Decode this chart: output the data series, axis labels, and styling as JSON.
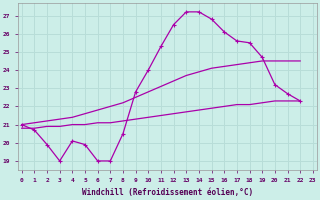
{
  "xlabel": "Windchill (Refroidissement éolien,°C)",
  "bg_color": "#cceee8",
  "grid_color": "#b8ddd8",
  "line_color": "#aa00aa",
  "x_ticks": [
    0,
    1,
    2,
    3,
    4,
    5,
    6,
    7,
    8,
    9,
    10,
    11,
    12,
    13,
    14,
    15,
    16,
    17,
    18,
    19,
    20,
    21,
    22,
    23
  ],
  "y_ticks": [
    19,
    20,
    21,
    22,
    23,
    24,
    25,
    26,
    27
  ],
  "ylim": [
    18.5,
    27.7
  ],
  "xlim": [
    -0.3,
    23.3
  ],
  "line1_x": [
    0,
    1,
    2,
    3,
    4,
    5,
    6,
    7,
    8,
    9,
    10,
    11,
    12,
    13,
    14,
    15,
    16,
    17,
    18,
    19,
    20,
    21,
    22
  ],
  "line1_y": [
    21.0,
    20.7,
    19.9,
    19.0,
    20.1,
    19.9,
    19.0,
    19.0,
    20.5,
    22.8,
    24.0,
    25.3,
    26.5,
    27.2,
    27.2,
    26.8,
    26.1,
    25.6,
    25.5,
    24.7,
    23.2,
    22.7,
    22.3
  ],
  "line2_x": [
    0,
    1,
    2,
    3,
    4,
    5,
    6,
    7,
    8,
    9,
    10,
    11,
    12,
    13,
    14,
    15,
    16,
    17,
    18,
    19,
    20,
    21,
    22
  ],
  "line2_y": [
    20.8,
    20.8,
    20.9,
    20.9,
    21.0,
    21.0,
    21.1,
    21.1,
    21.2,
    21.3,
    21.4,
    21.5,
    21.6,
    21.7,
    21.8,
    21.9,
    22.0,
    22.1,
    22.1,
    22.2,
    22.3,
    22.3,
    22.3
  ],
  "line3_x": [
    0,
    1,
    2,
    3,
    4,
    5,
    6,
    7,
    8,
    9,
    10,
    11,
    12,
    13,
    14,
    15,
    16,
    17,
    18,
    19,
    20,
    21,
    22
  ],
  "line3_y": [
    21.0,
    21.1,
    21.2,
    21.3,
    21.4,
    21.6,
    21.8,
    22.0,
    22.2,
    22.5,
    22.8,
    23.1,
    23.4,
    23.7,
    23.9,
    24.1,
    24.2,
    24.3,
    24.4,
    24.5,
    24.5,
    24.5,
    24.5
  ]
}
